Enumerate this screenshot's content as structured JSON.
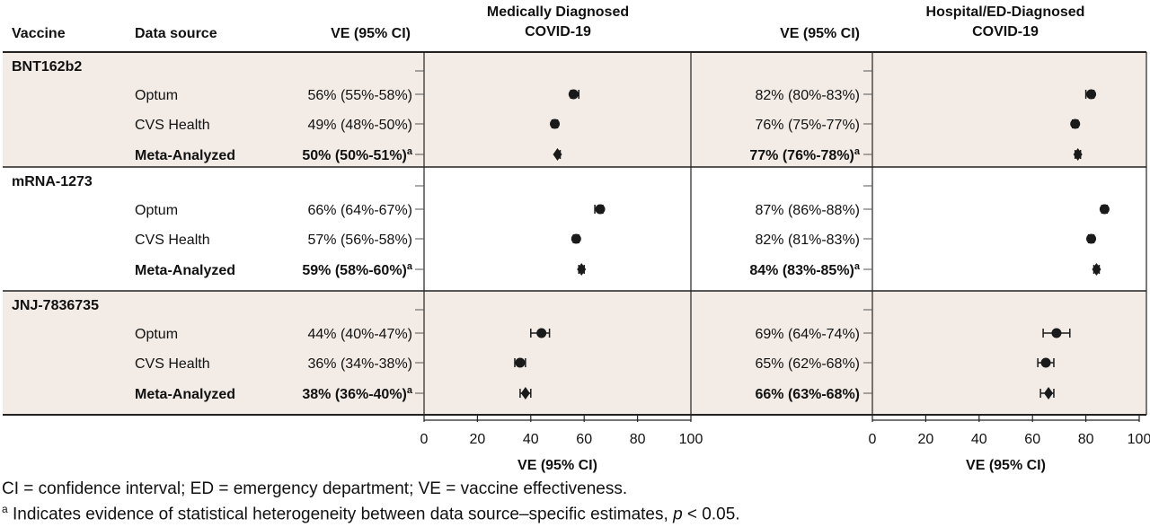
{
  "headers": {
    "vaccine": "Vaccine",
    "data_source": "Data source",
    "ve_ci": "VE (95% CI)",
    "panel1": [
      "Medically Diagnosed",
      "COVID-19"
    ],
    "panel2": [
      "Hospital/ED-Diagnosed",
      "COVID-19"
    ]
  },
  "colors": {
    "shade": "#f3ece6",
    "marker": "#1a1a1a",
    "rule": "#222222"
  },
  "chart_data": [
    {
      "type": "scatter",
      "title": "Medically Diagnosed COVID-19",
      "xlabel": "VE (95% CI)",
      "xlim": [
        0,
        100
      ],
      "xticks": [
        0,
        20,
        40,
        60,
        80,
        100
      ],
      "groups": [
        {
          "vaccine": "BNT162b2",
          "rows": [
            {
              "source": "Optum",
              "bold": false,
              "label": "56% (55%-58%)",
              "sup": "",
              "value": 56,
              "lo": 55,
              "hi": 58
            },
            {
              "source": "CVS Health",
              "bold": false,
              "label": "49% (48%-50%)",
              "sup": "",
              "value": 49,
              "lo": 48,
              "hi": 50
            },
            {
              "source": "Meta-Analyzed",
              "bold": true,
              "label": "50% (50%-51%)",
              "sup": "a",
              "value": 50,
              "lo": 50,
              "hi": 51
            }
          ]
        },
        {
          "vaccine": "mRNA-1273",
          "rows": [
            {
              "source": "Optum",
              "bold": false,
              "label": "66% (64%-67%)",
              "sup": "",
              "value": 66,
              "lo": 64,
              "hi": 67
            },
            {
              "source": "CVS Health",
              "bold": false,
              "label": "57% (56%-58%)",
              "sup": "",
              "value": 57,
              "lo": 56,
              "hi": 58
            },
            {
              "source": "Meta-Analyzed",
              "bold": true,
              "label": "59% (58%-60%)",
              "sup": "a",
              "value": 59,
              "lo": 58,
              "hi": 60
            }
          ]
        },
        {
          "vaccine": "JNJ-7836735",
          "rows": [
            {
              "source": "Optum",
              "bold": false,
              "label": "44% (40%-47%)",
              "sup": "",
              "value": 44,
              "lo": 40,
              "hi": 47
            },
            {
              "source": "CVS Health",
              "bold": false,
              "label": "36% (34%-38%)",
              "sup": "",
              "value": 36,
              "lo": 34,
              "hi": 38
            },
            {
              "source": "Meta-Analyzed",
              "bold": true,
              "label": "38% (36%-40%)",
              "sup": "a",
              "value": 38,
              "lo": 36,
              "hi": 40
            }
          ]
        }
      ]
    },
    {
      "type": "scatter",
      "title": "Hospital/ED-Diagnosed COVID-19",
      "xlabel": "VE (95% CI)",
      "xlim": [
        0,
        100
      ],
      "xticks": [
        0,
        20,
        40,
        60,
        80,
        100
      ],
      "groups": [
        {
          "vaccine": "BNT162b2",
          "rows": [
            {
              "source": "Optum",
              "bold": false,
              "label": "82% (80%-83%)",
              "sup": "",
              "value": 82,
              "lo": 80,
              "hi": 83
            },
            {
              "source": "CVS Health",
              "bold": false,
              "label": "76% (75%-77%)",
              "sup": "",
              "value": 76,
              "lo": 75,
              "hi": 77
            },
            {
              "source": "Meta-Analyzed",
              "bold": true,
              "label": "77% (76%-78%)",
              "sup": "a",
              "value": 77,
              "lo": 76,
              "hi": 78
            }
          ]
        },
        {
          "vaccine": "mRNA-1273",
          "rows": [
            {
              "source": "Optum",
              "bold": false,
              "label": "87% (86%-88%)",
              "sup": "",
              "value": 87,
              "lo": 86,
              "hi": 88
            },
            {
              "source": "CVS Health",
              "bold": false,
              "label": "82% (81%-83%)",
              "sup": "",
              "value": 82,
              "lo": 81,
              "hi": 83
            },
            {
              "source": "Meta-Analyzed",
              "bold": true,
              "label": "84% (83%-85%)",
              "sup": "a",
              "value": 84,
              "lo": 83,
              "hi": 85
            }
          ]
        },
        {
          "vaccine": "JNJ-7836735",
          "rows": [
            {
              "source": "Optum",
              "bold": false,
              "label": "69% (64%-74%)",
              "sup": "",
              "value": 69,
              "lo": 64,
              "hi": 74
            },
            {
              "source": "CVS Health",
              "bold": false,
              "label": "65% (62%-68%)",
              "sup": "",
              "value": 65,
              "lo": 62,
              "hi": 68
            },
            {
              "source": "Meta-Analyzed",
              "bold": true,
              "label": "66% (63%-68%)",
              "sup": "",
              "value": 66,
              "lo": 63,
              "hi": 68
            }
          ]
        }
      ]
    }
  ],
  "footnotes": {
    "abbrev": "CI = confidence interval; ED = emergency department; VE = vaccine effectiveness.",
    "a_marker": "a",
    "a_text_before": "Indicates evidence of statistical heterogeneity between data source–specific estimates, ",
    "a_p": "p",
    "a_text_after": " < 0.05."
  }
}
